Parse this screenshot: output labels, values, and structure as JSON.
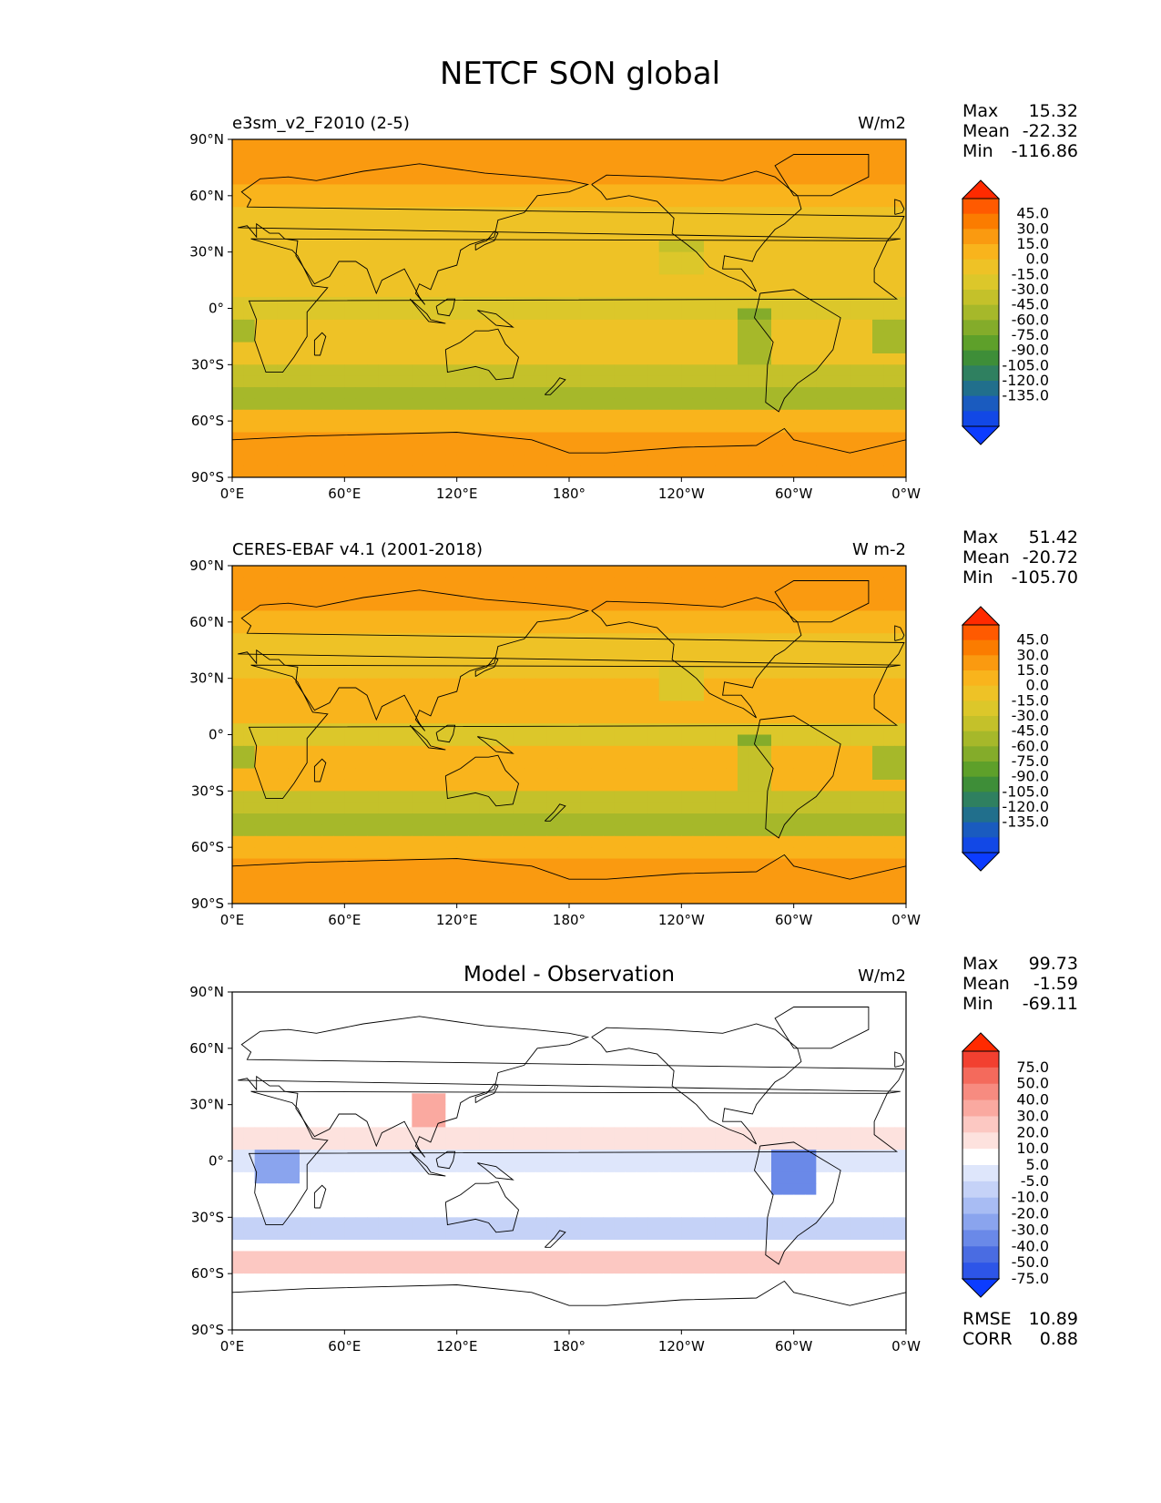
{
  "figure": {
    "title": "NETCF SON global",
    "x_ticks": [
      "0°E",
      "60°E",
      "120°E",
      "180°",
      "120°W",
      "60°W",
      "0°W"
    ],
    "y_ticks": [
      "90°N",
      "60°N",
      "30°N",
      "0°",
      "30°S",
      "60°S",
      "90°S"
    ]
  },
  "panels": [
    {
      "name": "test",
      "left_title": "e3sm_v2_F2010 (2-5)",
      "center_title": "",
      "units": "W/m2",
      "stats": {
        "labels": [
          "Max",
          "Mean",
          "Min"
        ],
        "values": [
          "15.32",
          "-22.32",
          "-116.86"
        ]
      },
      "colorbar": {
        "ticks": [
          "45.0",
          "30.0",
          "15.0",
          "0.0",
          "-15.0",
          "-30.0",
          "-45.0",
          "-60.0",
          "-75.0",
          "-90.0",
          "-105.0",
          "-120.0",
          "-135.0"
        ]
      }
    },
    {
      "name": "reference",
      "left_title": "CERES-EBAF v4.1 (2001-2018)",
      "center_title": "",
      "units": "W m-2",
      "stats": {
        "labels": [
          "Max",
          "Mean",
          "Min"
        ],
        "values": [
          "51.42",
          "-20.72",
          "-105.70"
        ]
      },
      "colorbar": {
        "ticks": [
          "45.0",
          "30.0",
          "15.0",
          "0.0",
          "-15.0",
          "-30.0",
          "-45.0",
          "-60.0",
          "-75.0",
          "-90.0",
          "-105.0",
          "-120.0",
          "-135.0"
        ]
      }
    },
    {
      "name": "difference",
      "left_title": "",
      "center_title": "Model - Observation",
      "units": "W/m2",
      "stats": {
        "labels": [
          "Max",
          "Mean",
          "Min"
        ],
        "values": [
          "99.73",
          "-1.59",
          "-69.11"
        ]
      },
      "extra_stats": {
        "labels": [
          "RMSE",
          "CORR"
        ],
        "values": [
          "10.89",
          "0.88"
        ]
      },
      "colorbar": {
        "ticks": [
          "75.0",
          "50.0",
          "40.0",
          "30.0",
          "20.0",
          "10.0",
          "5.0",
          "-5.0",
          "-10.0",
          "-20.0",
          "-30.0",
          "-40.0",
          "-50.0",
          "-75.0"
        ]
      }
    }
  ],
  "colors": {
    "field_scale": [
      "#ff2a00",
      "#ff5a00",
      "#fb7c00",
      "#fa9a10",
      "#f9b41c",
      "#eec226",
      "#dcc72a",
      "#c4c12a",
      "#a6b82a",
      "#84ac2a",
      "#5ea02a",
      "#3e8e38",
      "#2f8060",
      "#216f8c",
      "#1a5bbf",
      "#1248e6",
      "#0c3cff"
    ],
    "diff_scale": [
      "#ff2a00",
      "#f24030",
      "#f46a5c",
      "#f78b80",
      "#faa9a0",
      "#fcc8c2",
      "#fde2de",
      "#ffffff",
      "#dee6fb",
      "#c5d2f7",
      "#a8bcf3",
      "#8aa4ee",
      "#6a89e8",
      "#4a6ce2",
      "#2d55e8",
      "#0c3cff"
    ]
  }
}
